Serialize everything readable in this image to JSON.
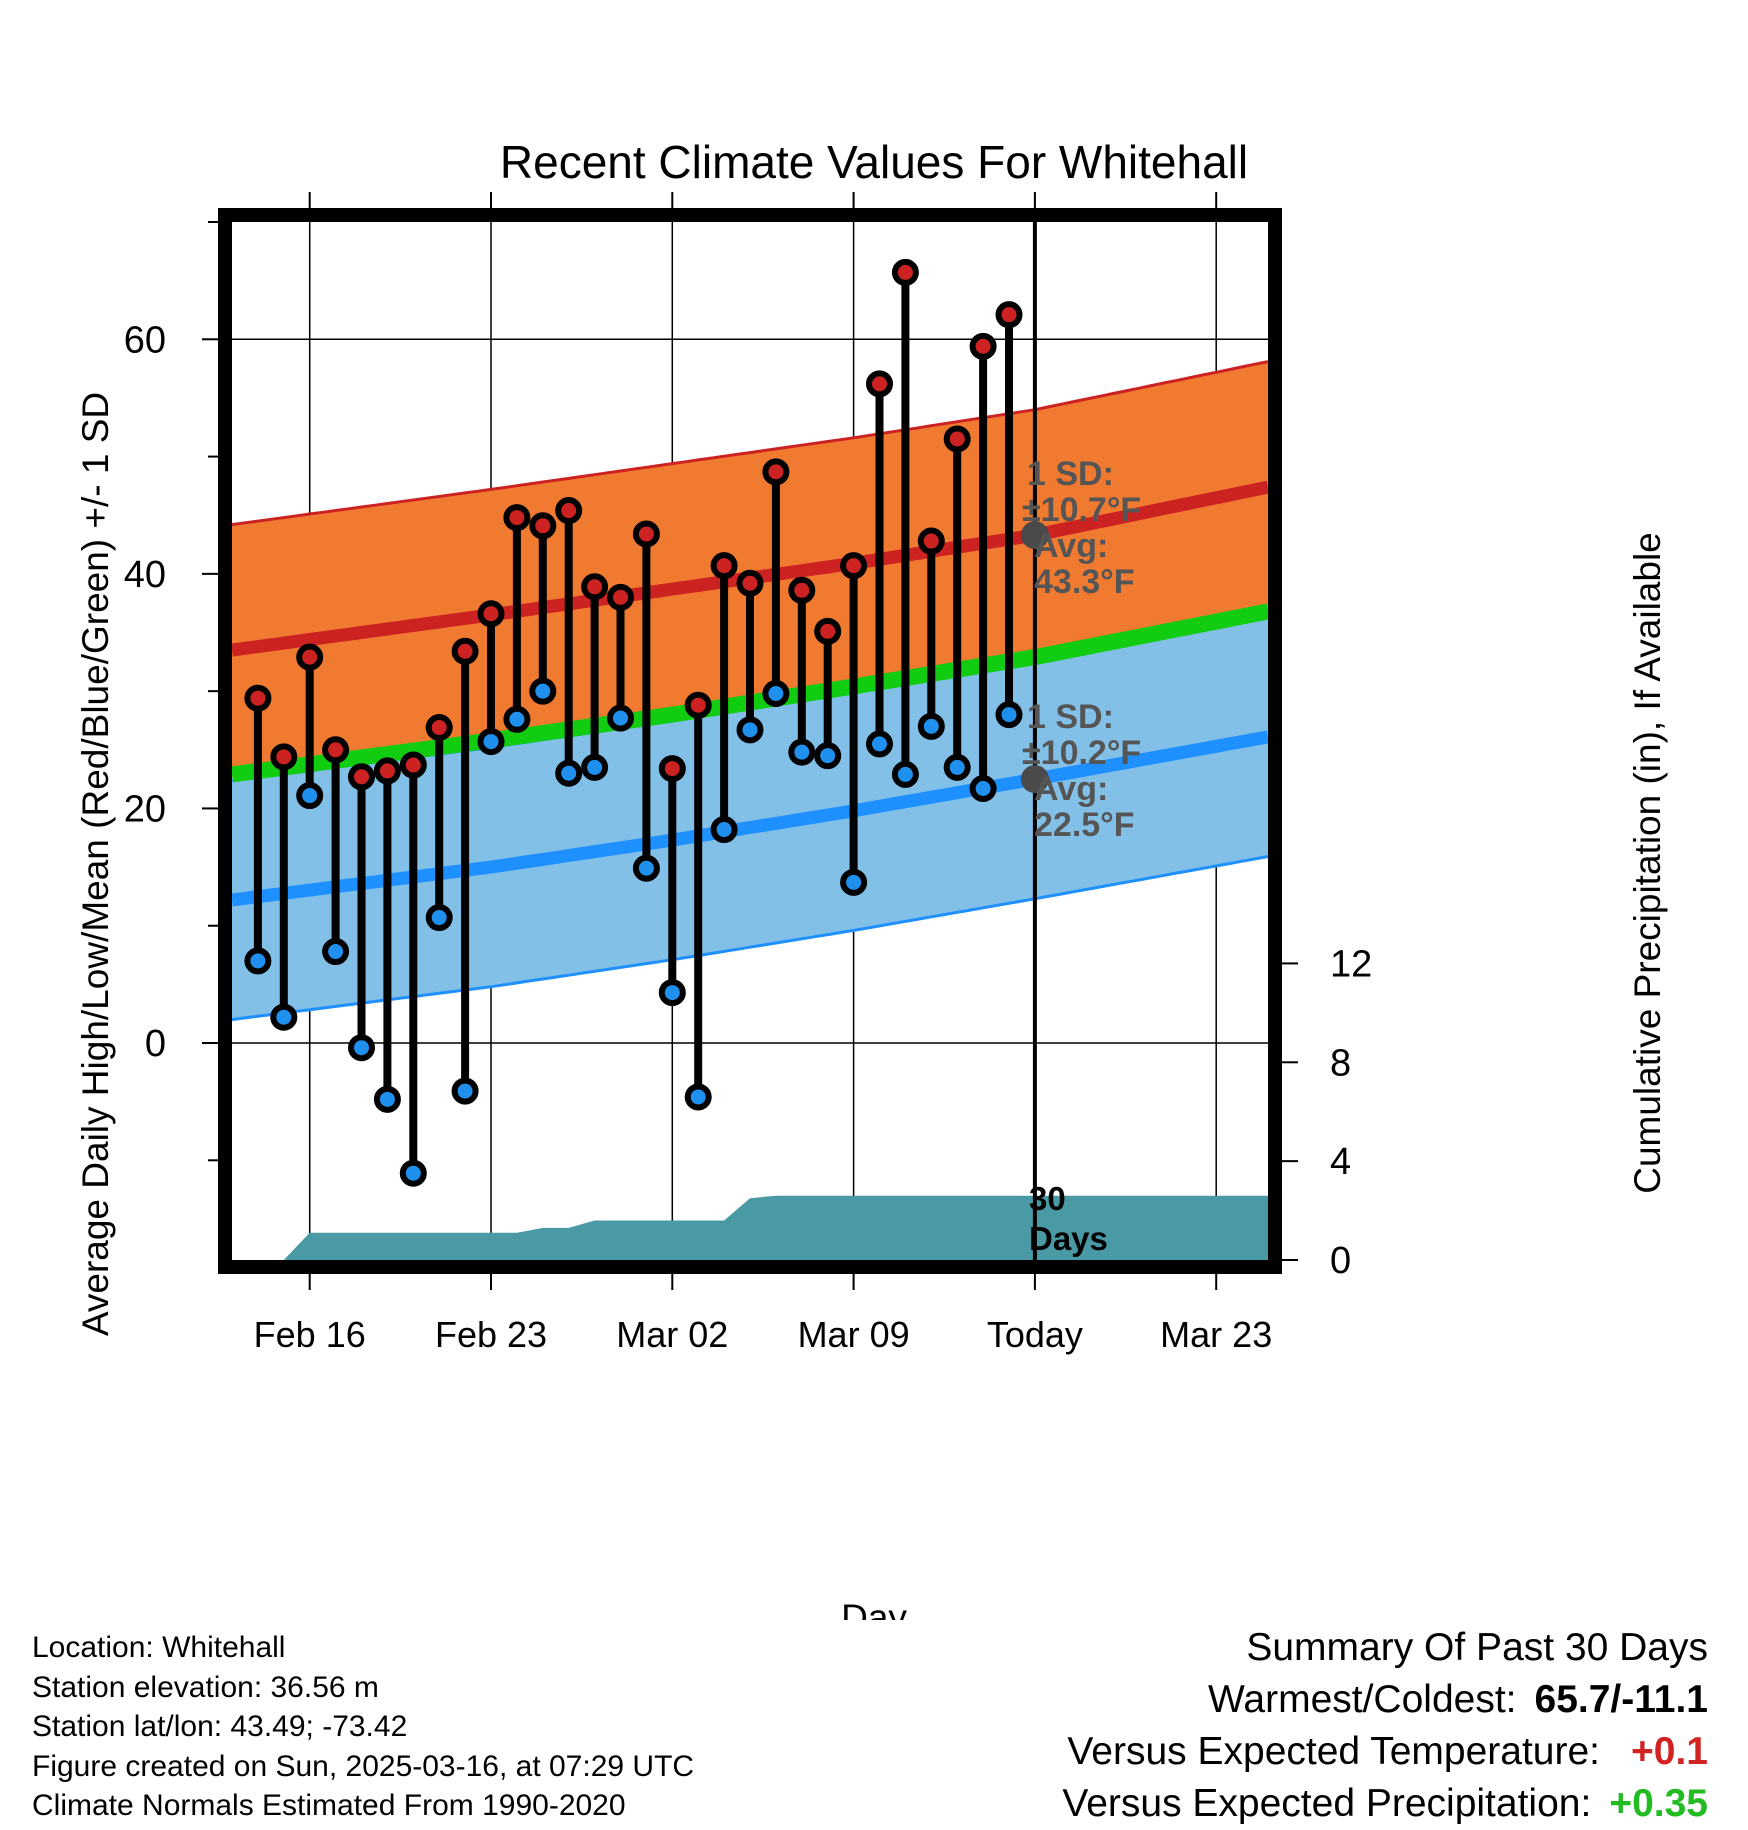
{
  "chart_data": {
    "type": "line",
    "title": "Recent Climate Values For Whitehall",
    "xlabel": "Day",
    "ylabel": "Average Daily High/Low/Mean (Red/Blue/Green) +/- 1 SD",
    "y2label": "Cumulative Precipitation (in), If Available",
    "x_tick_labels": [
      "Feb 16",
      "Feb 23",
      "Mar 02",
      "Mar 09",
      "Today",
      "Mar 23"
    ],
    "x_tick_dates": [
      "2025-02-16",
      "2025-02-23",
      "2025-03-02",
      "2025-03-09",
      "2025-03-16",
      "2025-03-23"
    ],
    "y_ticks": [
      0,
      20,
      40,
      60
    ],
    "y2_ticks": [
      0,
      4,
      8,
      12
    ],
    "xlim": [
      "2025-02-13",
      "2025-03-25"
    ],
    "ylim": [
      -18.5,
      70
    ],
    "y2lim": [
      0,
      42
    ],
    "grid": true,
    "dates": [
      "2025-02-14",
      "2025-02-15",
      "2025-02-16",
      "2025-02-17",
      "2025-02-18",
      "2025-02-19",
      "2025-02-20",
      "2025-02-21",
      "2025-02-22",
      "2025-02-23",
      "2025-02-24",
      "2025-02-25",
      "2025-02-26",
      "2025-02-27",
      "2025-02-28",
      "2025-03-01",
      "2025-03-02",
      "2025-03-03",
      "2025-03-04",
      "2025-03-05",
      "2025-03-06",
      "2025-03-07",
      "2025-03-08",
      "2025-03-09",
      "2025-03-10",
      "2025-03-11",
      "2025-03-12",
      "2025-03-13",
      "2025-03-14",
      "2025-03-15"
    ],
    "series": [
      {
        "name": "High",
        "color": "#cc2222",
        "values": [
          29.4,
          24.4,
          32.9,
          25.0,
          22.7,
          23.2,
          23.7,
          26.9,
          33.4,
          36.6,
          44.8,
          44.1,
          45.4,
          38.9,
          38.0,
          43.4,
          23.4,
          28.8,
          40.7,
          39.2,
          48.7,
          38.6,
          35.1,
          40.7,
          56.2,
          65.7,
          42.8,
          51.5,
          59.4,
          62.1
        ]
      },
      {
        "name": "Low",
        "color": "#2090ee",
        "values": [
          7.0,
          2.2,
          21.1,
          7.8,
          -0.4,
          -4.8,
          -11.1,
          10.7,
          -4.1,
          25.7,
          27.6,
          30.0,
          23.0,
          23.5,
          27.7,
          14.9,
          4.3,
          -4.6,
          18.2,
          26.7,
          29.8,
          24.8,
          24.5,
          13.7,
          25.5,
          22.9,
          27.0,
          23.5,
          21.7,
          28.0
        ]
      }
    ],
    "normals": {
      "dates": [
        "2025-02-13",
        "2025-02-23",
        "2025-03-02",
        "2025-03-09",
        "2025-03-16",
        "2025-03-25"
      ],
      "high_mean": [
        33.5,
        36.5,
        38.7,
        40.9,
        43.3,
        47.4
      ],
      "high_sd": 10.7,
      "low_mean": [
        12.2,
        15.0,
        17.3,
        19.8,
        22.5,
        26.1
      ],
      "low_sd": 10.2,
      "mean": [
        22.9,
        25.8,
        28.0,
        30.4,
        32.9,
        36.8
      ]
    },
    "precip_cumulative": {
      "dates": [
        "2025-02-13",
        "2025-02-15",
        "2025-02-16",
        "2025-02-24",
        "2025-02-25",
        "2025-02-26",
        "2025-02-27",
        "2025-02-28",
        "2025-03-04",
        "2025-03-05",
        "2025-03-06",
        "2025-03-25"
      ],
      "values": [
        0.0,
        0.0,
        1.1,
        1.1,
        1.3,
        1.3,
        1.6,
        1.6,
        1.6,
        2.5,
        2.6,
        2.6
      ],
      "color": "#4a9aa6"
    },
    "annotations": {
      "high_sd": "1 SD:",
      "high_sd_value": "±10.7°F",
      "high_avg": "Avg:",
      "high_avg_value": "43.3°F",
      "low_sd": "1 SD:",
      "low_sd_value": "±10.2°F",
      "low_avg": "Avg:",
      "low_avg_value": "22.5°F",
      "window_count": "30",
      "window_unit": "Days"
    }
  },
  "station": {
    "location": "Location: Whitehall",
    "elevation": "Station elevation: 36.56 m",
    "latlon": "Station lat/lon: 43.49; -73.42",
    "created": "Figure created on Sun, 2025-03-16, at 07:29 UTC",
    "normals": "Climate Normals Estimated From 1990-2020"
  },
  "summary": {
    "heading": "Summary Of Past 30 Days",
    "warm_cold_label": "Warmest/Coldest:",
    "warm_cold_value": "65.7/-11.1",
    "temp_label": "Versus Expected Temperature:",
    "temp_value": "+0.1",
    "temp_color": "#d22222",
    "precip_label": "Versus Expected Precipitation:",
    "precip_value": "+0.35",
    "precip_color": "#22bb22"
  },
  "colors": {
    "high_band": "#f07a30",
    "high_line": "#cc2222",
    "low_band": "#82c0e8",
    "low_line": "#1e90ff",
    "mean_line": "#11cc11",
    "precip_fill": "#4a9aa6"
  }
}
